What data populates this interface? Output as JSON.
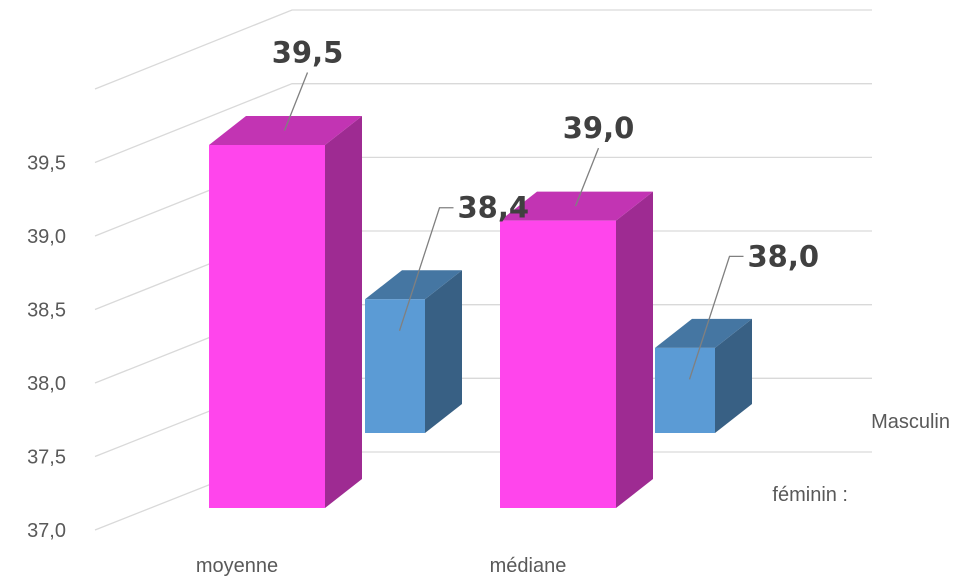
{
  "chart_data": {
    "type": "bar",
    "style": "3d-clustered-column",
    "categories": [
      "moyenne",
      "médiane"
    ],
    "series": [
      {
        "name": "féminin :",
        "color": "#ff45ec",
        "values": [
          39.5,
          39.0
        ],
        "labels": [
          "39,5",
          "39,0"
        ]
      },
      {
        "name": "Masculin",
        "color": "#5b9bd5",
        "values": [
          38.4,
          38.0
        ],
        "labels": [
          "38,4",
          "38,0"
        ]
      }
    ],
    "ylim": [
      37.0,
      40.0
    ],
    "yticks": [
      "37,0",
      "37,5",
      "38,0",
      "38,5",
      "39,0",
      "39,5"
    ],
    "grid": true,
    "legend": "series names at the depth ends of the rows, right side"
  }
}
